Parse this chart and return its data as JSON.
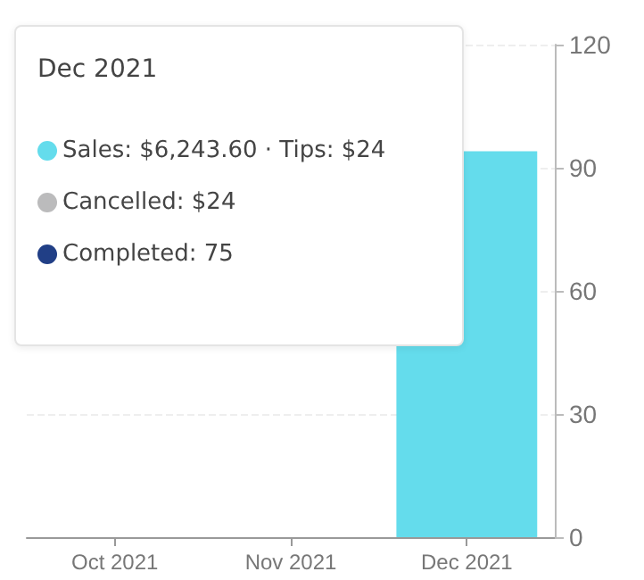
{
  "chart_data": {
    "type": "bar",
    "categories": [
      "Oct 2021",
      "Nov 2021",
      "Dec 2021"
    ],
    "series": [
      {
        "color": "#64dcec",
        "values": [
          null,
          null,
          94
        ]
      }
    ],
    "ylim": [
      0,
      120
    ],
    "yticks": [
      0,
      30,
      60,
      90,
      120
    ],
    "grid": "y",
    "annotations": [
      "Dec 2021",
      "Sales: $6,243.60 · Tips: $24",
      "Cancelled: $24",
      "Completed: 75"
    ]
  }
}
